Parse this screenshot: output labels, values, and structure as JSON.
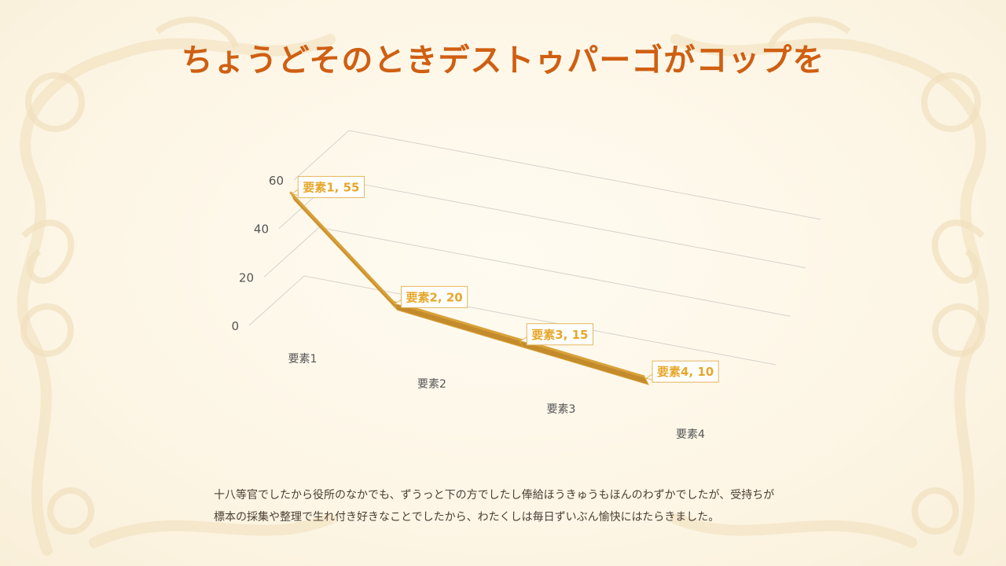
{
  "slide": {
    "title": "ちょうどそのときデストゥパーゴがコップを",
    "body_lines": [
      "十八等官でしたから役所のなかでも、ずうっと下の方でしたし俸給ほうきゅうもほんのわずかでしたが、受持ちが",
      "標本の採集や整理で生れ付き好きなことでしたから、わたくしは毎日ずいぶん愉快にはたらきました。"
    ]
  },
  "colors": {
    "title": "#cf5f12",
    "ribbon_top": "#d8a139",
    "ribbon_side": "#c48b2c",
    "label_text": "#e6a72a",
    "label_border": "#e2b75b",
    "gridline": "#d6d2cc",
    "axis_text": "#555555"
  },
  "chart_data": {
    "type": "line",
    "style": "3d-ribbon",
    "categories": [
      "要素1",
      "要素2",
      "要素3",
      "要素4"
    ],
    "series": [
      {
        "values": [
          55,
          20,
          15,
          10
        ]
      }
    ],
    "y_ticks": [
      0,
      20,
      40,
      60
    ],
    "ylim": [
      0,
      60
    ],
    "data_labels": [
      "要素1, 55",
      "要素2, 20",
      "要素3, 15",
      "要素4, 10"
    ],
    "grid": true,
    "legend": "none"
  }
}
